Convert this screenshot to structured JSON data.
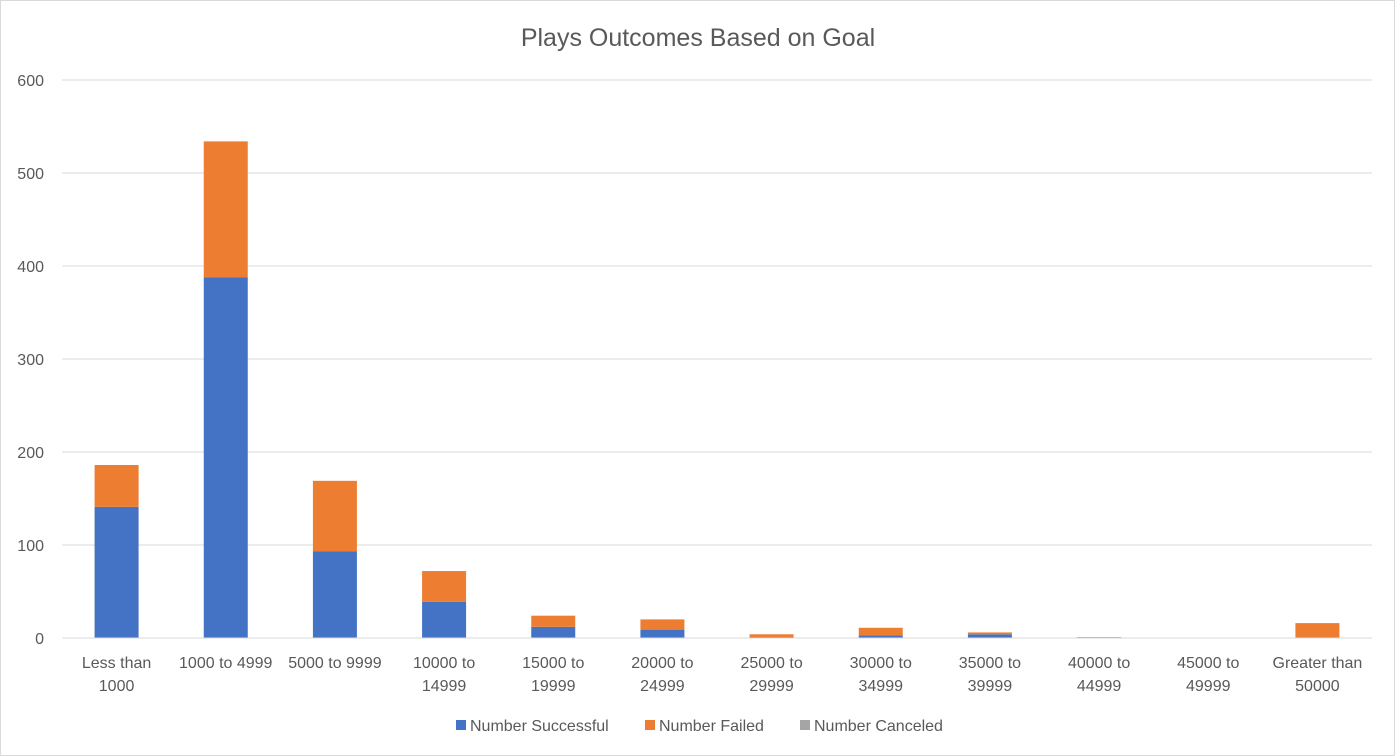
{
  "chart_data": {
    "type": "bar",
    "stacked": true,
    "title": "Plays Outcomes Based on Goal",
    "xlabel": "",
    "ylabel": "",
    "ylim": [
      0,
      600
    ],
    "yticks": [
      0,
      100,
      200,
      300,
      400,
      500,
      600
    ],
    "grid": true,
    "legend_position": "bottom",
    "categories": [
      [
        "Less than",
        "1000"
      ],
      [
        "1000 to 4999"
      ],
      [
        "5000 to 9999"
      ],
      [
        "10000 to",
        "14999"
      ],
      [
        "15000 to",
        "19999"
      ],
      [
        "20000 to",
        "24999"
      ],
      [
        "25000 to",
        "29999"
      ],
      [
        "30000 to",
        "34999"
      ],
      [
        "35000 to",
        "39999"
      ],
      [
        "40000 to",
        "44999"
      ],
      [
        "45000 to",
        "49999"
      ],
      [
        "Greater than",
        "50000"
      ]
    ],
    "series": [
      {
        "name": "Number Successful",
        "color": "#4472c4",
        "values": [
          141,
          388,
          93,
          39,
          12,
          9,
          1,
          3,
          4,
          0,
          0,
          0
        ]
      },
      {
        "name": "Number Failed",
        "color": "#ed7d31",
        "values": [
          45,
          146,
          76,
          33,
          12,
          11,
          3,
          8,
          2,
          1,
          0,
          16
        ]
      },
      {
        "name": "Number Canceled",
        "color": "#a5a5a5",
        "values": [
          0,
          0,
          0,
          0,
          0,
          0,
          0,
          0,
          0,
          0,
          0,
          0
        ]
      }
    ]
  }
}
